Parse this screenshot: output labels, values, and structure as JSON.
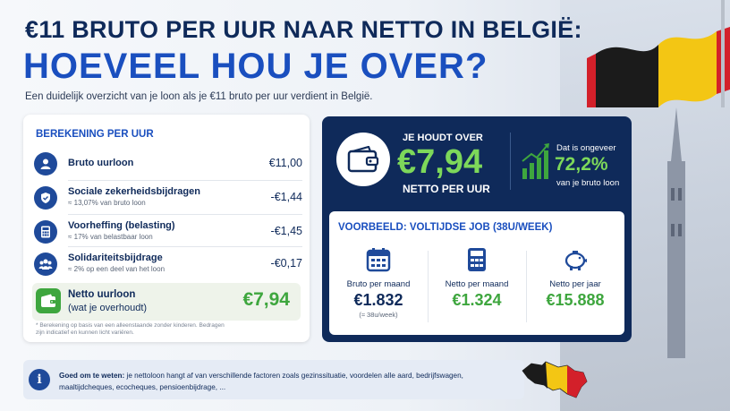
{
  "header": {
    "title_line1": "€11 BRUTO PER UUR NAAR NETTO IN BELGIË:",
    "title_line2": "HOEVEEL HOU JE OVER?",
    "subtitle": "Een duidelijk overzicht van je loon als je €11 bruto per uur verdient in België."
  },
  "calculation": {
    "heading": "BEREKENING PER UUR",
    "rows": [
      {
        "label": "Bruto uurloon",
        "sub": "",
        "amount": "€11,00",
        "icon": "person-icon"
      },
      {
        "label": "Sociale zekerheidsbijdragen",
        "sub": "≈ 13,07% van bruto loon",
        "amount": "-€1,44",
        "icon": "shield-icon"
      },
      {
        "label": "Voorheffing (belasting)",
        "sub": "≈ 17% van belastbaar loon",
        "amount": "-€1,45",
        "icon": "calculator-icon"
      },
      {
        "label": "Solidariteitsbijdrage",
        "sub": "≈ 2% op een deel van het loon",
        "amount": "-€0,17",
        "icon": "group-icon"
      }
    ],
    "netto_label": "Netto uurloon",
    "netto_sub": "(wat je overhoudt)",
    "netto_amount": "€7,94",
    "footnote": "* Berekening op basis van een alleenstaande zonder kinderen. Bedragen zijn indicatief en kunnen licht variëren."
  },
  "highlight": {
    "top": "JE HOUDT OVER",
    "amount": "€7,94",
    "bottom": "NETTO PER UUR",
    "pct_top": "Dat is ongeveer",
    "pct": "72,2%",
    "pct_bottom": "van je bruto loon"
  },
  "example": {
    "heading": "VOORBEELD: VOLTIJDSE JOB (38U/WEEK)",
    "columns": [
      {
        "label": "Bruto per maand",
        "value": "€1.832",
        "sub": "(≈ 38u/week)",
        "icon": "calendar-icon",
        "color": "#0f2a5a"
      },
      {
        "label": "Netto per maand",
        "value": "€1.324",
        "sub": "",
        "icon": "calculator-icon",
        "color": "#3ea63e"
      },
      {
        "label": "Netto per jaar",
        "value": "€15.888",
        "sub": "",
        "icon": "piggy-bank-icon",
        "color": "#3ea63e"
      }
    ]
  },
  "info": {
    "bold": "Goed om te weten:",
    "text": "je nettoloon hangt af van verschillende factoren zoals gezinssituatie, voordelen alle aard, bedrijfswagen, maaltijdcheques, ecocheques, pensioenbijdrage, ..."
  },
  "colors": {
    "navy": "#0f2a5a",
    "blue": "#1a4fbf",
    "green": "#3ea63e",
    "light_green": "#7dd85a"
  }
}
